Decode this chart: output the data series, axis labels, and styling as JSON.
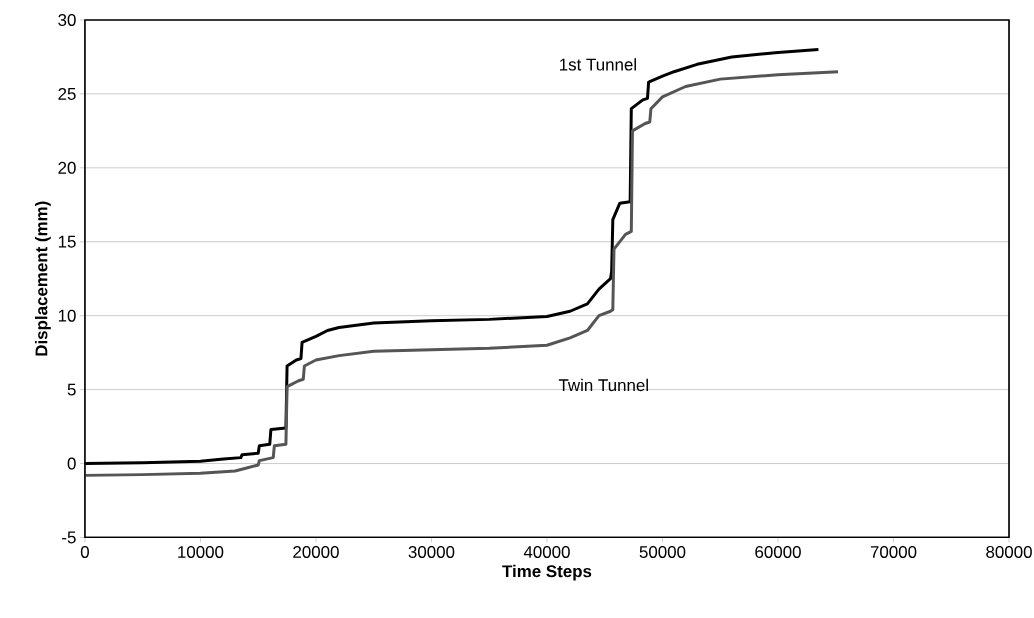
{
  "chart_data": {
    "type": "line",
    "xlabel": "Time Steps",
    "ylabel": "Displacement (mm)",
    "xlim": [
      0,
      80000
    ],
    "ylim": [
      -5,
      30
    ],
    "xticks": [
      0,
      10000,
      20000,
      30000,
      40000,
      50000,
      60000,
      70000,
      80000
    ],
    "yticks": [
      -5,
      0,
      5,
      10,
      15,
      20,
      25,
      30
    ],
    "grid": "y",
    "marker": "none",
    "line_style": "solid",
    "series": [
      {
        "name": "1st Tunnel",
        "color": "#000000",
        "x": [
          0,
          5000,
          10000,
          12000,
          13500,
          13600,
          15000,
          15100,
          16000,
          16100,
          17400,
          17500,
          18300,
          18700,
          18800,
          20000,
          21000,
          22000,
          25000,
          30000,
          35000,
          40000,
          42000,
          43500,
          44500,
          45500,
          45600,
          45700,
          46300,
          47200,
          47300,
          48300,
          48700,
          48800,
          50000,
          51000,
          53000,
          56000,
          60000,
          63500
        ],
        "values": [
          0,
          0.05,
          0.15,
          0.3,
          0.4,
          0.6,
          0.7,
          1.2,
          1.3,
          2.3,
          2.4,
          6.6,
          7.0,
          7.1,
          8.2,
          8.6,
          9.0,
          9.2,
          9.5,
          9.65,
          9.75,
          9.95,
          10.3,
          10.8,
          11.8,
          12.5,
          13.0,
          16.5,
          17.6,
          17.7,
          24.0,
          24.6,
          24.7,
          25.8,
          26.2,
          26.5,
          27.0,
          27.5,
          27.8,
          28.0
        ]
      },
      {
        "name": "Twin Tunnel",
        "color": "#555555",
        "x": [
          0,
          5000,
          10000,
          13000,
          14000,
          15000,
          15100,
          16300,
          16400,
          17400,
          17500,
          18500,
          18900,
          19000,
          20000,
          22000,
          25000,
          30000,
          35000,
          40000,
          42000,
          43500,
          44500,
          45500,
          45700,
          45800,
          46800,
          47300,
          47400,
          48500,
          48900,
          49000,
          50000,
          52000,
          55000,
          60000,
          65200
        ],
        "values": [
          -0.8,
          -0.75,
          -0.65,
          -0.5,
          -0.3,
          -0.1,
          0.2,
          0.4,
          1.2,
          1.3,
          5.2,
          5.6,
          5.7,
          6.6,
          7.0,
          7.3,
          7.6,
          7.7,
          7.8,
          8.0,
          8.5,
          9.0,
          10.0,
          10.3,
          10.4,
          14.5,
          15.5,
          15.7,
          22.5,
          23.0,
          23.1,
          24.0,
          24.8,
          25.5,
          26.0,
          26.3,
          26.5
        ]
      }
    ]
  }
}
